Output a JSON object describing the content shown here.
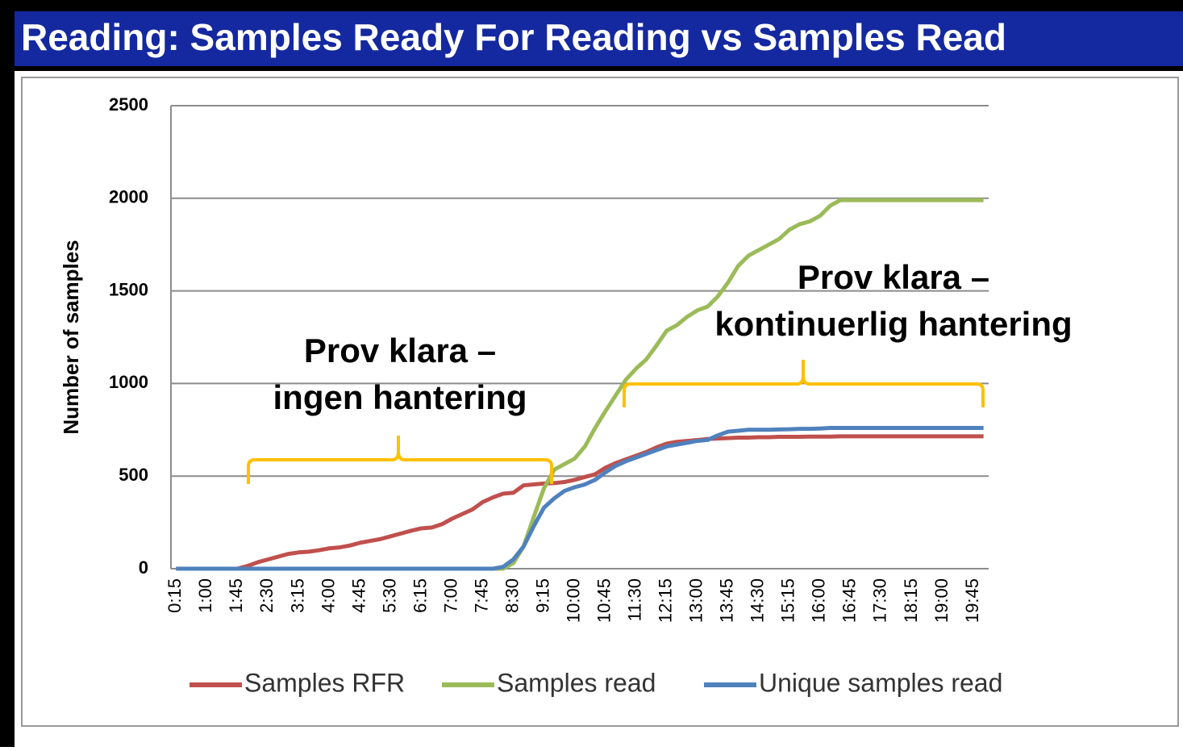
{
  "chart_data": {
    "type": "line",
    "title": "Reading: Samples Ready For Reading vs Samples Read",
    "y_label": "Number of samples",
    "annotations": [
      "Prov klara –",
      "ingen hantering",
      "Prov klara –",
      "kontinuerlig hantering"
    ],
    "categories": [
      "0:15",
      null,
      null,
      "1:00",
      null,
      null,
      "1:45",
      null,
      null,
      "2:30",
      null,
      null,
      "3:15",
      null,
      null,
      "4:00",
      null,
      null,
      "4:45",
      null,
      null,
      "5:30",
      null,
      null,
      "6:15",
      null,
      null,
      "7:00",
      null,
      null,
      "7:45",
      null,
      null,
      "8:30",
      null,
      null,
      "9:15",
      null,
      null,
      "10:00",
      null,
      null,
      "10:45",
      null,
      null,
      "11:30",
      null,
      null,
      "12:15",
      null,
      null,
      "13:00",
      null,
      null,
      "13:45",
      null,
      null,
      "14:30",
      null,
      null,
      "15:15",
      null,
      null,
      "16:00",
      null,
      null,
      "16:45",
      null,
      null,
      "17:30",
      null,
      null,
      "18:15",
      null,
      null,
      "19:00",
      null,
      null,
      "19:45",
      null
    ],
    "series": [
      {
        "name": "Samples RFR",
        "color": "#c0504d",
        "values": [
          0,
          0,
          0,
          0,
          0,
          0,
          0,
          15,
          35,
          50,
          65,
          80,
          88,
          92,
          100,
          110,
          115,
          125,
          140,
          150,
          160,
          175,
          190,
          205,
          218,
          222,
          240,
          270,
          295,
          320,
          360,
          385,
          405,
          410,
          450,
          455,
          460,
          462,
          468,
          480,
          495,
          510,
          545,
          570,
          590,
          610,
          630,
          655,
          675,
          685,
          690,
          695,
          700,
          703,
          705,
          708,
          708,
          710,
          710,
          712,
          712,
          712,
          713,
          713,
          713,
          715,
          715,
          715,
          715,
          715,
          715,
          715,
          715,
          715,
          715,
          715,
          715,
          715,
          715,
          715
        ]
      },
      {
        "name": "Samples read",
        "color": "#9bbb59",
        "values": [
          0,
          0,
          0,
          0,
          0,
          0,
          0,
          0,
          0,
          0,
          0,
          0,
          0,
          0,
          0,
          0,
          0,
          0,
          0,
          0,
          0,
          0,
          0,
          0,
          0,
          0,
          0,
          0,
          0,
          0,
          0,
          0,
          0,
          30,
          120,
          280,
          435,
          535,
          565,
          595,
          660,
          760,
          850,
          935,
          1020,
          1080,
          1130,
          1205,
          1285,
          1315,
          1360,
          1395,
          1415,
          1470,
          1545,
          1635,
          1690,
          1720,
          1750,
          1780,
          1830,
          1860,
          1875,
          1905,
          1960,
          1990,
          1990,
          1990,
          1990,
          1990,
          1990,
          1990,
          1990,
          1990,
          1990,
          1990,
          1990,
          1990,
          1990,
          1990
        ]
      },
      {
        "name": "Unique samples read",
        "color": "#4f81bd",
        "values": [
          0,
          0,
          0,
          0,
          0,
          0,
          0,
          0,
          0,
          0,
          0,
          0,
          0,
          0,
          0,
          0,
          0,
          0,
          0,
          0,
          0,
          0,
          0,
          0,
          0,
          0,
          0,
          0,
          0,
          0,
          0,
          0,
          10,
          50,
          120,
          230,
          330,
          380,
          420,
          440,
          455,
          480,
          520,
          555,
          580,
          600,
          620,
          640,
          660,
          670,
          680,
          690,
          695,
          720,
          740,
          745,
          750,
          750,
          750,
          752,
          753,
          755,
          755,
          757,
          760,
          760,
          760,
          760,
          760,
          760,
          760,
          760,
          760,
          760,
          760,
          760,
          760,
          760,
          760,
          760
        ]
      }
    ],
    "ylim": [
      0,
      2500
    ],
    "yticks": [
      0,
      500,
      1000,
      1500,
      2000,
      2500
    ],
    "grid": true
  }
}
